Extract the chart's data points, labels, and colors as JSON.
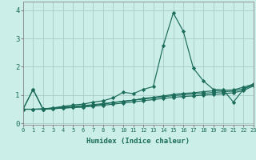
{
  "xlabel": "Humidex (Indice chaleur)",
  "xlim": [
    0,
    23
  ],
  "ylim": [
    -0.05,
    4.3
  ],
  "xtick_labels": [
    "0",
    "1",
    "2",
    "3",
    "4",
    "5",
    "6",
    "7",
    "8",
    "9",
    "10",
    "11",
    "12",
    "13",
    "14",
    "15",
    "16",
    "17",
    "18",
    "19",
    "20",
    "21",
    "22",
    "23"
  ],
  "ytick_values": [
    0,
    1,
    2,
    3,
    4
  ],
  "bg_color": "#cceee8",
  "grid_color": "#aaccc8",
  "line_color": "#1a6b5a",
  "series": [
    [
      0.5,
      1.2,
      0.5,
      0.55,
      0.6,
      0.65,
      0.68,
      0.75,
      0.8,
      0.9,
      1.1,
      1.05,
      1.2,
      1.3,
      2.75,
      3.9,
      3.25,
      1.95,
      1.5,
      1.2,
      1.18,
      0.75,
      1.2,
      1.4
    ],
    [
      0.5,
      1.2,
      0.5,
      0.52,
      0.54,
      0.57,
      0.58,
      0.64,
      0.68,
      0.73,
      0.78,
      0.82,
      0.88,
      0.92,
      0.97,
      1.02,
      1.06,
      1.08,
      1.12,
      1.15,
      1.17,
      1.18,
      1.28,
      1.38
    ],
    [
      0.5,
      0.5,
      0.52,
      0.54,
      0.57,
      0.6,
      0.63,
      0.66,
      0.7,
      0.74,
      0.78,
      0.82,
      0.86,
      0.9,
      0.94,
      0.98,
      1.01,
      1.04,
      1.06,
      1.09,
      1.12,
      1.14,
      1.22,
      1.35
    ],
    [
      0.5,
      0.5,
      0.5,
      0.52,
      0.54,
      0.56,
      0.58,
      0.61,
      0.64,
      0.68,
      0.72,
      0.76,
      0.8,
      0.84,
      0.88,
      0.92,
      0.95,
      0.97,
      1.0,
      1.02,
      1.05,
      1.08,
      1.16,
      1.32
    ]
  ],
  "marker": "D",
  "marker_size": 2.2,
  "linewidth": 0.85
}
